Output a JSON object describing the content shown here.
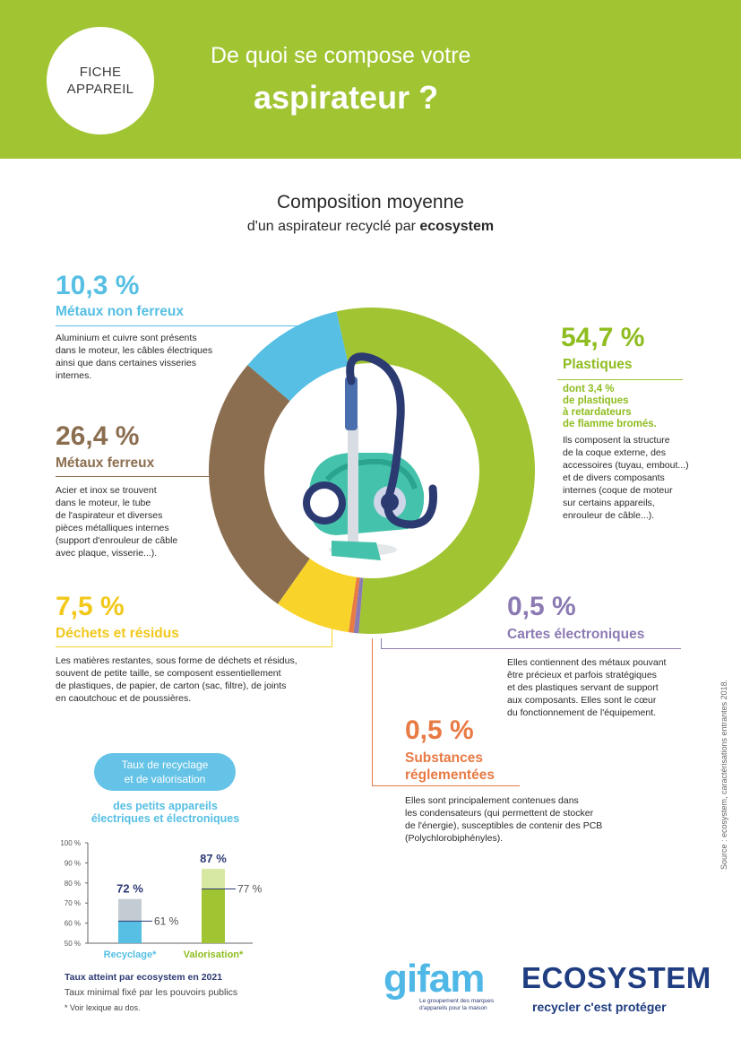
{
  "header": {
    "badge_line1": "FICHE",
    "badge_line2": "APPAREIL",
    "title_line1": "De quoi se compose votre",
    "title_line2": "aspirateur ?"
  },
  "intro": {
    "title": "Composition moyenne",
    "subtitle_prefix": "d'un aspirateur recyclé par ",
    "subtitle_brand": "ecosystem"
  },
  "items": {
    "metaux_non_ferreux": {
      "percent": "10,3 %",
      "label": "Métaux non ferreux",
      "desc": [
        "Aluminium et cuivre sont présents",
        "dans le moteur, les câbles électriques",
        "ainsi que dans certaines visseries",
        "internes."
      ]
    },
    "metaux_ferreux": {
      "percent": "26,4 %",
      "label": "Métaux ferreux",
      "desc": [
        "Acier et inox se trouvent",
        "dans le moteur, le tube",
        "de l'aspirateur et diverses",
        "pièces métalliques internes",
        "(support d'enrouleur de câble",
        "avec plaque, visserie...)."
      ]
    },
    "dechets": {
      "percent": "7,5 %",
      "label": "Déchets et résidus",
      "desc": [
        "Les matières restantes, sous forme de déchets et résidus,",
        "souvent de petite taille, se composent essentiellement",
        "de plastiques, de papier, de carton (sac, filtre), de joints",
        "en caoutchouc et de poussières."
      ]
    },
    "plastiques": {
      "percent": "54,7 %",
      "label": "Plastiques",
      "note": [
        "dont 3,4 %",
        "de plastiques",
        "à retardateurs",
        "de flamme bromés."
      ],
      "desc": [
        "Ils composent la structure",
        "de la coque externe, des",
        "accessoires (tuyau, embout...)",
        "et de divers composants",
        "internes (coque de moteur",
        "sur certains appareils,",
        "enrouleur de câble...)."
      ]
    },
    "cartes": {
      "percent": "0,5 %",
      "label": "Cartes électroniques",
      "desc": [
        "Elles contiennent des métaux pouvant",
        "être précieux et parfois stratégiques",
        "et des plastiques servant de support",
        "aux composants. Elles sont le cœur",
        "du fonctionnement de l'équipement."
      ]
    },
    "substances": {
      "percent": "0,5 %",
      "label_line1": "Substances",
      "label_line2": "réglementées",
      "desc": [
        "Elles sont principalement contenues dans",
        "les condensateurs (qui permettent de stocker",
        "de l'énergie), susceptibles de contenir des PCB",
        "(Polychlorobiphényles)."
      ]
    }
  },
  "chart_data": [
    {
      "type": "pie",
      "title": "Composition moyenne",
      "categories": [
        "Plastiques",
        "Cartes électroniques",
        "Substances réglementées",
        "Déchets et résidus",
        "Métaux ferreux",
        "Métaux non ferreux"
      ],
      "values": [
        54.7,
        0.5,
        0.5,
        7.5,
        26.4,
        10.3
      ],
      "colors": [
        "#a1c432",
        "#8c7ab3",
        "#e87a44",
        "#f8d42a",
        "#8b6e4f",
        "#56bfe3"
      ]
    },
    {
      "type": "bar",
      "categories": [
        "Recyclage*",
        "Valorisation*"
      ],
      "series": [
        {
          "name": "Taux atteint par ecosystem en 2021",
          "values": [
            72,
            87
          ]
        },
        {
          "name": "Taux minimal fixé par les pouvoirs publics",
          "values": [
            61,
            77
          ]
        }
      ],
      "value_labels": [
        "72 %",
        "87 %"
      ],
      "min_labels": [
        "61 %",
        "77 %"
      ],
      "yticks": [
        "100 %",
        "90 %",
        "80 %",
        "70 %",
        "60 %",
        "50 %"
      ],
      "ylim": [
        50,
        100
      ],
      "colors": {
        "recyclage": "#56bfe3",
        "recyclage_light": "#c3ccd2",
        "valorisation": "#a1c432",
        "valorisation_light": "#d6e8a1"
      }
    }
  ],
  "rates": {
    "pill_line1": "Taux de recyclage",
    "pill_line2": "et de valorisation",
    "sub_line1": "des petits appareils",
    "sub_line2": "électriques et électroniques",
    "legend_strong": "Taux atteint par ecosystem en 2021",
    "legend_weak": "Taux minimal fixé par les pouvoirs publics",
    "footnote": "* Voir lexique au dos."
  },
  "source": "Source : ecosystem, caractérisations entrantes 2018.",
  "logos": {
    "gifam": "gifam",
    "gifam_tagline": "Le groupement des marques d'appareils pour la maison",
    "ecosystem": "ECOSYSTEM",
    "ecosystem_tagline": "recycler c'est protéger"
  }
}
